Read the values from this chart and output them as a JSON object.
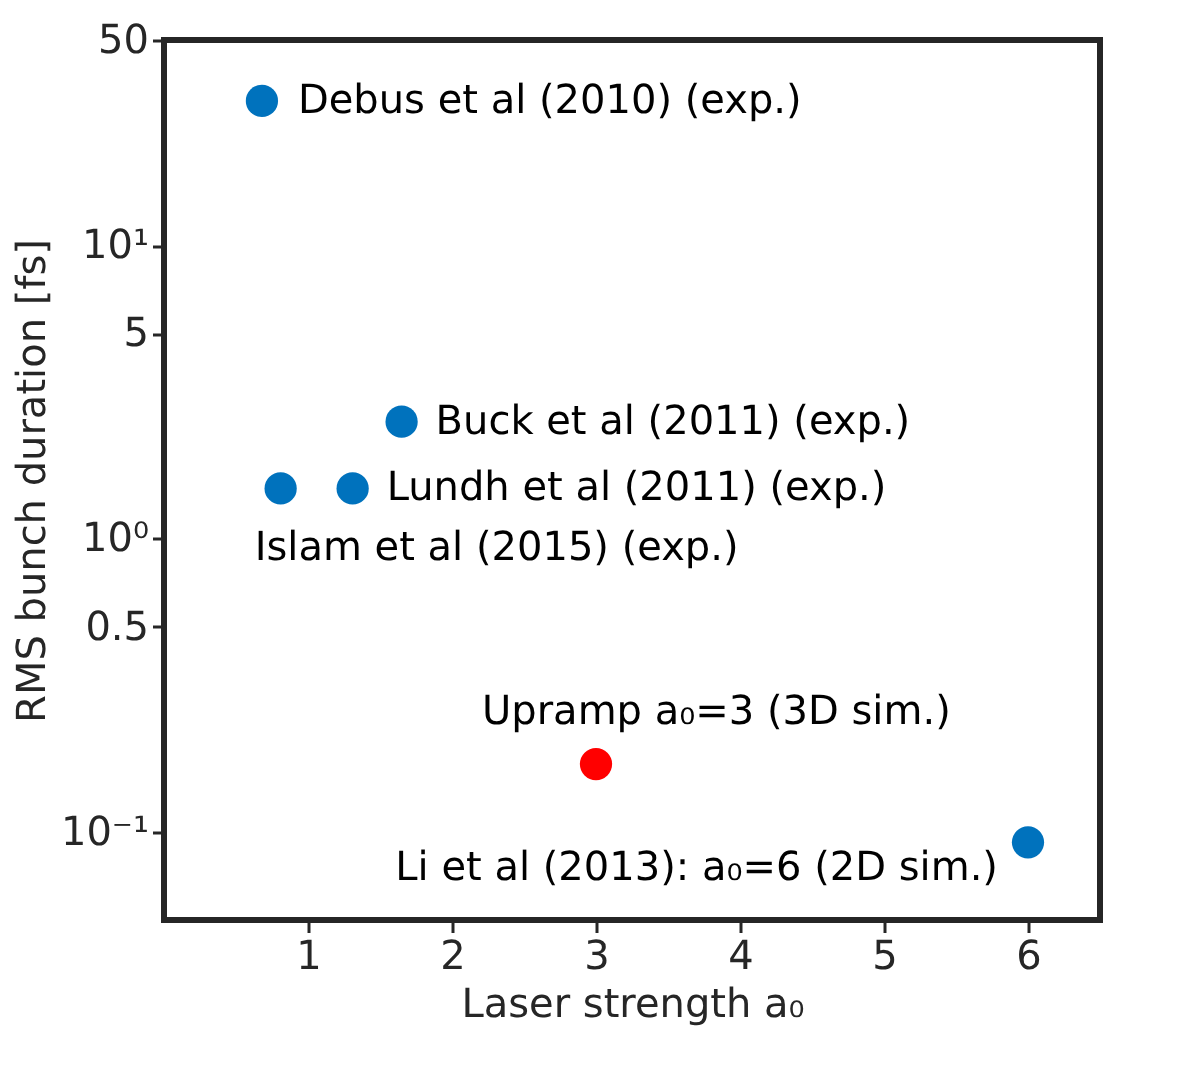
{
  "chart_data": {
    "type": "scatter",
    "xlabel": "Laser strength a₀",
    "ylabel": "RMS bunch duration [fs]",
    "log": "y",
    "xlim": [
      0,
      6.5
    ],
    "xticks": [
      1,
      2,
      3,
      4,
      5,
      6
    ],
    "ylim": [
      0.05,
      50
    ],
    "yticks": [
      {
        "value": 0.1,
        "label": "10⁻¹"
      },
      0.5,
      {
        "value": 1,
        "label": "10⁰"
      },
      5,
      {
        "value": 10,
        "label": "10¹"
      },
      50
    ],
    "series": [
      {
        "color": "#0072bd",
        "x": [
          0.68,
          1.65,
          0.81,
          1.31,
          6
        ],
        "values": [
          31,
          2.5,
          1.48,
          1.48,
          0.092
        ]
      },
      {
        "color": "#ff0000",
        "x": [
          3
        ],
        "values": [
          0.17
        ]
      }
    ],
    "annotations": [
      {
        "text": "Debus et al (2010) (exp.)",
        "x": 0.68,
        "y": 31
      },
      {
        "text": "Buck et al (2011) (exp.)",
        "x": 1.65,
        "y": 2.5
      },
      {
        "text": "Lundh et al (2011) (exp.)",
        "x": 1.31,
        "y": 1.48
      },
      {
        "text": "Islam et al (2015) (exp.)",
        "x": 0.81,
        "y": 1.48
      },
      {
        "text": "Upramp a₀=3 (3D sim.)",
        "x": 3,
        "y": 0.17
      },
      {
        "text": "Li et al (2013): a₀=6 (2D sim.)",
        "x": 6,
        "y": 0.092
      }
    ],
    "marker": "circle",
    "grid": false,
    "legend": false
  }
}
